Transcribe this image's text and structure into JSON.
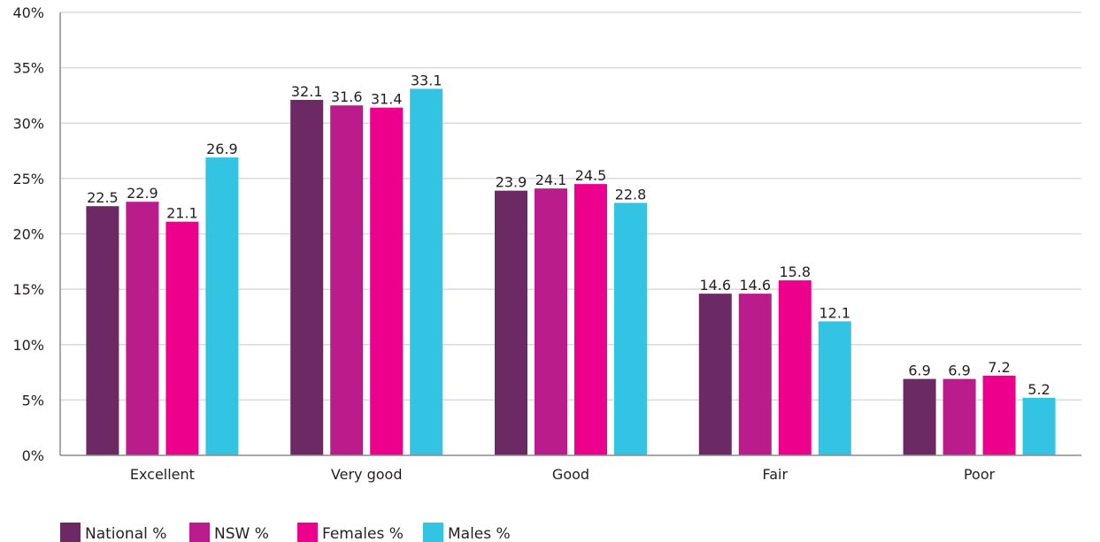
{
  "chart_data": {
    "type": "bar",
    "title": "",
    "xlabel": "",
    "ylabel": "",
    "ylim": [
      0,
      40
    ],
    "y_ticks": [
      "0%",
      "5%",
      "10%",
      "15%",
      "20%",
      "25%",
      "30%",
      "35%",
      "40%"
    ],
    "grid": true,
    "legend_position": "bottom-left",
    "categories": [
      "Excellent",
      "Very good",
      "Good",
      "Fair",
      "Poor"
    ],
    "series": [
      {
        "name": "National %",
        "color": "#6b2a63",
        "values": [
          22.5,
          32.1,
          23.9,
          14.6,
          6.9
        ],
        "labels": [
          "22.5",
          "32.1",
          "23.9",
          "14.6",
          "6.9"
        ]
      },
      {
        "name": "NSW %",
        "color": "#bb1c8b",
        "values": [
          22.9,
          31.6,
          24.1,
          14.6,
          6.9
        ],
        "labels": [
          "22.9",
          "31.6",
          "24.1",
          "14.6",
          "6.9"
        ]
      },
      {
        "name": "Females %",
        "color": "#ec008c",
        "values": [
          21.1,
          31.4,
          24.5,
          15.8,
          7.2
        ],
        "labels": [
          "21.1",
          "31.4",
          "24.5",
          "15.8",
          "7.2"
        ]
      },
      {
        "name": "Males %",
        "color": "#33c3e3",
        "values": [
          26.9,
          33.1,
          22.8,
          12.1,
          5.2
        ],
        "labels": [
          "26.9",
          "33.1",
          "22.8",
          "12.1",
          "5.2"
        ]
      }
    ]
  }
}
